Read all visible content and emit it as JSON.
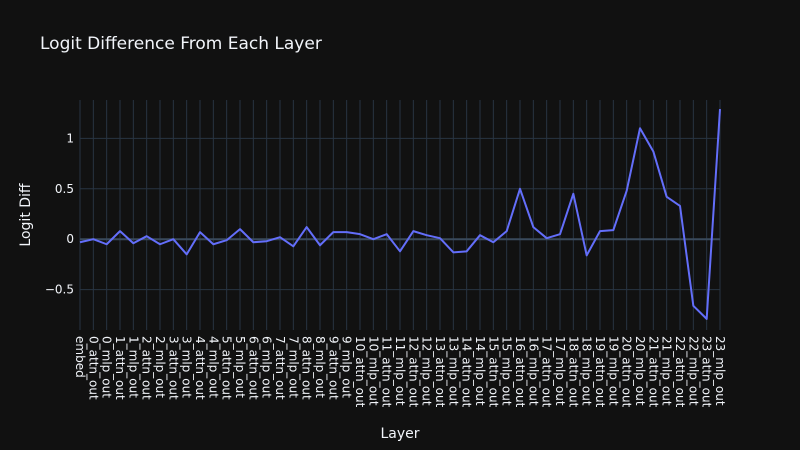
{
  "chart_data": {
    "type": "line",
    "title": "Logit Difference From Each Layer",
    "xlabel": "Layer",
    "ylabel": "Logit Diff",
    "ylim": [
      -0.9,
      1.38
    ],
    "yticks": [
      -0.5,
      0,
      0.5,
      1
    ],
    "ytick_labels": [
      "−0.5",
      "0",
      "0.5",
      "1"
    ],
    "grid": true,
    "line_color": "#636efa",
    "x": [
      "embed",
      "0_attn_out",
      "0_mlp_out",
      "1_attn_out",
      "1_mlp_out",
      "2_attn_out",
      "2_mlp_out",
      "3_attn_out",
      "3_mlp_out",
      "4_attn_out",
      "4_mlp_out",
      "5_attn_out",
      "5_mlp_out",
      "6_attn_out",
      "6_mlp_out",
      "7_attn_out",
      "7_mlp_out",
      "8_attn_out",
      "8_mlp_out",
      "9_attn_out",
      "9_mlp_out",
      "10_attn_out",
      "10_mlp_out",
      "11_attn_out",
      "11_mlp_out",
      "12_attn_out",
      "12_mlp_out",
      "13_attn_out",
      "13_mlp_out",
      "14_attn_out",
      "14_mlp_out",
      "15_attn_out",
      "15_mlp_out",
      "16_attn_out",
      "16_mlp_out",
      "17_attn_out",
      "17_mlp_out",
      "18_attn_out",
      "18_mlp_out",
      "19_attn_out",
      "19_mlp_out",
      "20_attn_out",
      "20_mlp_out",
      "21_attn_out",
      "21_mlp_out",
      "22_attn_out",
      "22_mlp_out",
      "23_attn_out",
      "23_mlp_out"
    ],
    "y": [
      -0.03,
      0.0,
      -0.05,
      0.08,
      -0.04,
      0.03,
      -0.05,
      0.0,
      -0.15,
      0.07,
      -0.05,
      -0.01,
      0.1,
      -0.03,
      -0.02,
      0.02,
      -0.07,
      0.12,
      -0.06,
      0.07,
      0.07,
      0.05,
      0.0,
      0.05,
      -0.12,
      0.08,
      0.04,
      0.01,
      -0.13,
      -0.12,
      0.04,
      -0.03,
      0.08,
      0.5,
      0.12,
      0.01,
      0.05,
      0.45,
      -0.16,
      0.08,
      0.09,
      0.48,
      1.1,
      0.87,
      0.42,
      0.33,
      -0.66,
      -0.79,
      1.29
    ]
  }
}
